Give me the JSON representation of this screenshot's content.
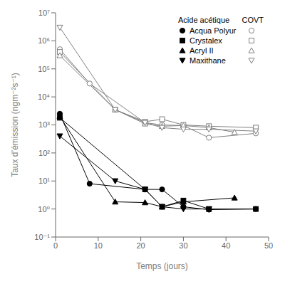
{
  "chart_data": {
    "type": "line",
    "title": "",
    "xlabel": "Temps (jours)",
    "ylabel": "Taux d’émission (ngm⁻²s⁻¹)",
    "xlim": [
      0,
      50
    ],
    "xticks": [
      0,
      10,
      20,
      30,
      40,
      50
    ],
    "ylim": [
      0.1,
      10000000
    ],
    "yticks": [
      {
        "value": 0.1,
        "label": "10⁻¹"
      },
      {
        "value": 1,
        "label": "10⁰"
      },
      {
        "value": 10,
        "label": "10¹"
      },
      {
        "value": 100,
        "label": "10²"
      },
      {
        "value": 1000,
        "label": "10³"
      },
      {
        "value": 10000,
        "label": "10⁴"
      },
      {
        "value": 100000,
        "label": "10⁵"
      },
      {
        "value": 1000000,
        "label": "10⁶"
      },
      {
        "value": 10000000,
        "label": "10⁷"
      }
    ],
    "log": "y",
    "grid": false,
    "legend": "upper right",
    "annotations": [
      "Acide acétique",
      "COVT"
    ],
    "series": [
      {
        "name": "Acqua Polyur",
        "color": "#000000",
        "marker": "circle",
        "line_style": "solid",
        "x": [
          1,
          8,
          21,
          25,
          30,
          36,
          47
        ],
        "values": [
          2500,
          8,
          5,
          5,
          1.2,
          0.95,
          1.0
        ]
      },
      {
        "name": "Acqua Polyur",
        "color": "#808080",
        "marker": "circle_open",
        "line_style": "solid",
        "x": [
          1,
          8,
          21,
          25,
          30,
          36,
          47
        ],
        "values": [
          500000,
          30000,
          1200,
          1000,
          950,
          350,
          500
        ]
      },
      {
        "name": "Crystalex",
        "color": "#000000",
        "marker": "square",
        "line_style": "solid",
        "x": [
          1,
          21,
          25,
          30,
          36,
          47
        ],
        "values": [
          1800,
          5,
          1.2,
          2.0,
          1.0,
          1.0
        ]
      },
      {
        "name": "Crystalex",
        "color": "#808080",
        "marker": "square_open",
        "line_style": "solid",
        "x": [
          1,
          14,
          21,
          25,
          30,
          36,
          47
        ],
        "values": [
          400000,
          3500,
          1300,
          1600,
          1000,
          900,
          800
        ]
      },
      {
        "name": "Acryl II",
        "color": "#000000",
        "marker": "triangle_up",
        "line_style": "solid",
        "x": [
          1,
          14,
          21,
          25,
          30,
          42
        ],
        "values": [
          2000,
          1.8,
          1.7,
          1.2,
          1.8,
          2.5
        ]
      },
      {
        "name": "Acryl II",
        "color": "#808080",
        "marker": "triangle_up_open",
        "line_style": "solid",
        "x": [
          1,
          14,
          21,
          25,
          30,
          36,
          42
        ],
        "values": [
          300000,
          3500,
          1100,
          900,
          950,
          800,
          550
        ]
      },
      {
        "name": "Maxithane",
        "color": "#000000",
        "marker": "triangle_down",
        "line_style": "solid",
        "x": [
          1,
          14,
          21,
          25,
          30,
          36
        ],
        "values": [
          400,
          10,
          5,
          1.2,
          1.0,
          1.0
        ]
      },
      {
        "name": "Maxithane",
        "color": "#808080",
        "marker": "triangle_down_open",
        "line_style": "solid",
        "x": [
          1,
          14,
          21,
          25,
          30,
          36,
          47
        ],
        "values": [
          3000000,
          3500,
          1200,
          800,
          700,
          700,
          600
        ]
      }
    ]
  }
}
